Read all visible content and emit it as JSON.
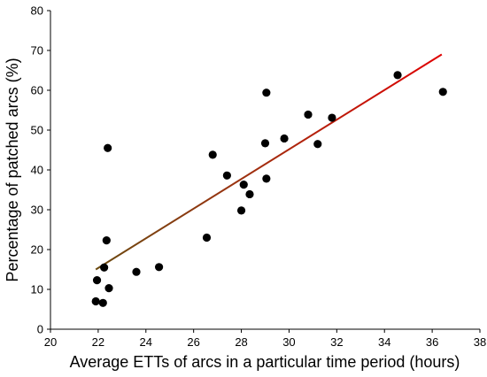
{
  "chart_data": {
    "type": "scatter",
    "title": "",
    "xlabel": "Average ETTs of arcs in a particular time period (hours)",
    "ylabel": "Percentage of patched arcs (%)",
    "xlim": [
      20,
      38
    ],
    "ylim": [
      0,
      80
    ],
    "x_ticks": [
      20,
      22,
      24,
      26,
      28,
      30,
      32,
      34,
      36,
      38
    ],
    "y_ticks": [
      0,
      10,
      20,
      30,
      40,
      50,
      60,
      70,
      80
    ],
    "grid": false,
    "legend": "none",
    "point_color": "#000000",
    "trendline": {
      "x": [
        21.9,
        36.4
      ],
      "y": [
        15.0,
        69.0
      ],
      "color_start": "#6b4a10",
      "color_end": "#e00000"
    },
    "points": [
      {
        "x": 21.9,
        "y": 7.0
      },
      {
        "x": 21.95,
        "y": 12.3
      },
      {
        "x": 22.2,
        "y": 6.6
      },
      {
        "x": 22.25,
        "y": 15.5
      },
      {
        "x": 22.35,
        "y": 22.3
      },
      {
        "x": 22.4,
        "y": 45.5
      },
      {
        "x": 22.45,
        "y": 10.3
      },
      {
        "x": 23.6,
        "y": 14.4
      },
      {
        "x": 24.55,
        "y": 15.6
      },
      {
        "x": 26.55,
        "y": 23.0
      },
      {
        "x": 26.8,
        "y": 43.8
      },
      {
        "x": 27.4,
        "y": 38.6
      },
      {
        "x": 28.0,
        "y": 29.8
      },
      {
        "x": 28.1,
        "y": 36.3
      },
      {
        "x": 28.35,
        "y": 33.9
      },
      {
        "x": 29.0,
        "y": 46.7
      },
      {
        "x": 29.05,
        "y": 59.4
      },
      {
        "x": 29.05,
        "y": 37.8
      },
      {
        "x": 29.8,
        "y": 47.9
      },
      {
        "x": 30.8,
        "y": 53.9
      },
      {
        "x": 31.2,
        "y": 46.5
      },
      {
        "x": 31.8,
        "y": 53.1
      },
      {
        "x": 34.55,
        "y": 63.8
      },
      {
        "x": 36.45,
        "y": 59.6
      }
    ]
  }
}
